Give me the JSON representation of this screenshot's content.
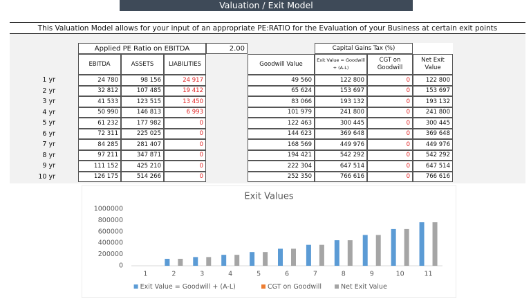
{
  "header": {
    "title": "Valuation / Exit Model",
    "description": "This Valuation Model allows for your input of an appropriate PE:RATIO for the Evaluation of your Business at certain exit points"
  },
  "table": {
    "pe_label": "Applied PE Ratio on EBITDA",
    "pe_value": "2.00",
    "cgt_label": "Capital Gains Tax (%)",
    "columns": [
      "EBITDA",
      "ASSETS",
      "LIABILITIES",
      "Goodwill Value",
      "Exit Value = Goodwill + (A-L)",
      "CGT on Goodwill",
      "Net Exit Value"
    ],
    "rows": [
      [
        "1 yr",
        "24 780",
        "98 156",
        "24 917",
        "49 560",
        "122 800",
        "0",
        "122 800"
      ],
      [
        "2 yr",
        "32 812",
        "107 485",
        "19 412",
        "65 624",
        "153 697",
        "0",
        "153 697"
      ],
      [
        "3 yr",
        "41 533",
        "123 515",
        "13 450",
        "83 066",
        "193 132",
        "0",
        "193 132"
      ],
      [
        "4 yr",
        "50 990",
        "146 813",
        "6 993",
        "101 979",
        "241 800",
        "0",
        "241 800"
      ],
      [
        "5 yr",
        "61 232",
        "177 982",
        "0",
        "122 463",
        "300 445",
        "0",
        "300 445"
      ],
      [
        "6 yr",
        "72 311",
        "225 025",
        "0",
        "144 623",
        "369 648",
        "0",
        "369 648"
      ],
      [
        "7 yr",
        "84 285",
        "281 407",
        "0",
        "168 569",
        "449 976",
        "0",
        "449 976"
      ],
      [
        "8 yr",
        "97 211",
        "347 871",
        "0",
        "194 421",
        "542 292",
        "0",
        "542 292"
      ],
      [
        "9 yr",
        "111 152",
        "425 210",
        "0",
        "222 304",
        "647 514",
        "0",
        "647 514"
      ],
      [
        "10 yr",
        "126 175",
        "514 266",
        "0",
        "252 350",
        "766 616",
        "0",
        "766 616"
      ]
    ]
  },
  "chart_data": {
    "type": "bar",
    "title": "Exit Values",
    "categories": [
      "1",
      "2",
      "3",
      "4",
      "5",
      "6",
      "7",
      "8",
      "9",
      "10",
      "11"
    ],
    "series": [
      {
        "name": "Exit Value = Goodwill + (A-L)",
        "color": "#5b9bd5",
        "values": [
          null,
          122800,
          153697,
          193132,
          241800,
          300445,
          369648,
          449976,
          542292,
          647514,
          766616
        ]
      },
      {
        "name": "CGT on Goodwill",
        "color": "#ed7d31",
        "values": [
          null,
          0,
          0,
          0,
          0,
          0,
          0,
          0,
          0,
          0,
          0
        ]
      },
      {
        "name": "Net Exit Value",
        "color": "#a5a5a5",
        "values": [
          null,
          122800,
          153697,
          193132,
          241800,
          300445,
          369648,
          449976,
          542292,
          647514,
          766616
        ]
      }
    ],
    "ylim": [
      0,
      1000000
    ],
    "yticks": [
      0,
      200000,
      400000,
      600000,
      800000,
      1000000
    ],
    "grid": false,
    "legend": "bottom"
  }
}
